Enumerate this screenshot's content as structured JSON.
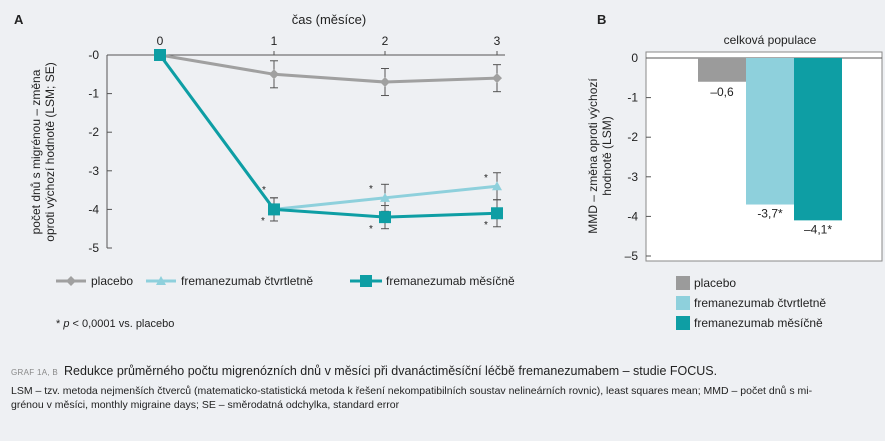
{
  "chart_data": [
    {
      "type": "line",
      "panel_label": "A",
      "xlabel": "čas (měsíce)",
      "ylabel_lines": [
        "počet dnů s migrénou – změna",
        "oproti výchozí hodnotě (LSM; SE)"
      ],
      "x": [
        0,
        1,
        2,
        3
      ],
      "x_ticks": [
        "0",
        "1",
        "2",
        "3"
      ],
      "y_ticks": [
        "-0",
        "-1",
        "-2",
        "-3",
        "-4",
        "-5"
      ],
      "ylim": [
        -5,
        0
      ],
      "grid": false,
      "legend_position": "bottom",
      "series": [
        {
          "name": "placebo",
          "values": [
            0,
            -0.5,
            -0.7,
            -0.6
          ],
          "error": [
            0,
            0.35,
            0.35,
            0.35
          ],
          "color": "#a0a0a0",
          "marker": "diamond"
        },
        {
          "name": "fremanezumab čtvrtletně",
          "values": [
            0,
            -4.0,
            -3.7,
            -3.4
          ],
          "error": [
            0,
            0.3,
            0.35,
            0.35
          ],
          "color": "#8ed0dc",
          "marker": "triangle"
        },
        {
          "name": "fremanezumab měsíčně",
          "values": [
            0,
            -4.0,
            -4.2,
            -4.1
          ],
          "error": [
            0,
            0.3,
            0.3,
            0.35
          ],
          "color": "#0e9ea4",
          "marker": "square"
        }
      ],
      "annotations": [
        "*",
        "*",
        "*",
        "*",
        "*",
        "*"
      ],
      "footnote": "* p < 0,0001 vs. placebo"
    },
    {
      "type": "bar",
      "panel_label": "B",
      "title": "celková populace",
      "ylabel_lines": [
        "MMD – změna oproti výchozí",
        "hodnotě (LSM)"
      ],
      "categories": [
        "placebo",
        "fremanezumab čtvrtletně",
        "fremanezumab měsíčně"
      ],
      "values": [
        -0.6,
        -3.7,
        -4.1
      ],
      "value_labels": [
        "–0,6",
        "-3,7*",
        "–4,1*"
      ],
      "colors": [
        "#9b9b9b",
        "#8ed0dc",
        "#0e9ea4"
      ],
      "y_ticks": [
        "0",
        "-1",
        "-2",
        "-3",
        "-4",
        "–5"
      ],
      "ylim": [
        -5,
        0
      ],
      "grid": false,
      "legend_position": "bottom"
    }
  ],
  "caption": {
    "tag": "GRAF 1A, B",
    "title": "Redukce průměrného počtu migrenózních dnů v měsíci při dvanáctiměsíční léčbě fremanezumabem – studie FOCUS.",
    "line1": "LSM – tzv. metoda nejmenších čtverců (matematicko-statistická metoda k řešení nekompatibilních soustav nelineárních rovnic), least squares mean; MMD – počet dnů s mi-",
    "line2": "grénou v měsíci, monthly migraine days; SE – směrodatná odchylka, standard error"
  }
}
